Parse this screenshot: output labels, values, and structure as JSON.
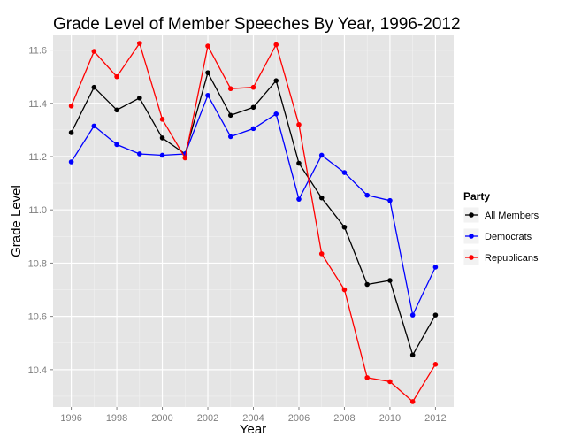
{
  "chart_data": {
    "type": "line",
    "title": "Grade Level of Member Speeches By Year, 1996-2012",
    "xlabel": "Year",
    "ylabel": "Grade Level",
    "x": [
      1996,
      1997,
      1998,
      1999,
      2000,
      2001,
      2002,
      2003,
      2004,
      2005,
      2006,
      2007,
      2008,
      2009,
      2010,
      2011,
      2012
    ],
    "xlim": [
      1995.2,
      2012.8
    ],
    "ylim": [
      10.26,
      11.655
    ],
    "x_ticks": [
      "1996",
      "1998",
      "2000",
      "2002",
      "2004",
      "2006",
      "2008",
      "2010",
      "2012"
    ],
    "y_ticks": [
      "10.4",
      "10.6",
      "10.8",
      "11.0",
      "11.2",
      "11.4",
      "11.6"
    ],
    "grid": true,
    "legend": {
      "title": "Party",
      "placement": "right"
    },
    "series": [
      {
        "name": "All Members",
        "color": "#000000",
        "values": [
          11.29,
          11.46,
          11.375,
          11.42,
          11.27,
          11.21,
          11.515,
          11.355,
          11.385,
          11.485,
          11.175,
          11.045,
          10.935,
          10.72,
          10.735,
          10.455,
          10.605
        ]
      },
      {
        "name": "Democrats",
        "color": "#0000ff",
        "values": [
          11.18,
          11.315,
          11.245,
          11.21,
          11.205,
          11.21,
          11.43,
          11.275,
          11.305,
          11.36,
          11.04,
          11.205,
          11.14,
          11.055,
          11.035,
          10.605,
          10.785
        ]
      },
      {
        "name": "Republicans",
        "color": "#ff0000",
        "values": [
          11.39,
          11.595,
          11.5,
          11.625,
          11.34,
          11.195,
          11.615,
          11.455,
          11.46,
          11.62,
          11.32,
          10.835,
          10.7,
          10.37,
          10.355,
          10.28,
          10.42
        ]
      }
    ]
  }
}
